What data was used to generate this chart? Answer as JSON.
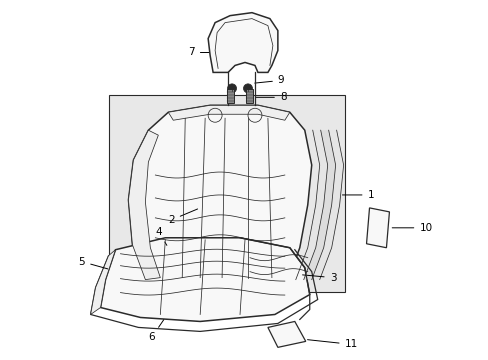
{
  "background_color": "#ffffff",
  "line_color": "#2a2a2a",
  "label_color": "#000000",
  "fig_width": 4.89,
  "fig_height": 3.6,
  "dpi": 100,
  "box_fill": "#e8e8e8",
  "part_fill": "#f8f8f8",
  "part_fill2": "#efefef"
}
